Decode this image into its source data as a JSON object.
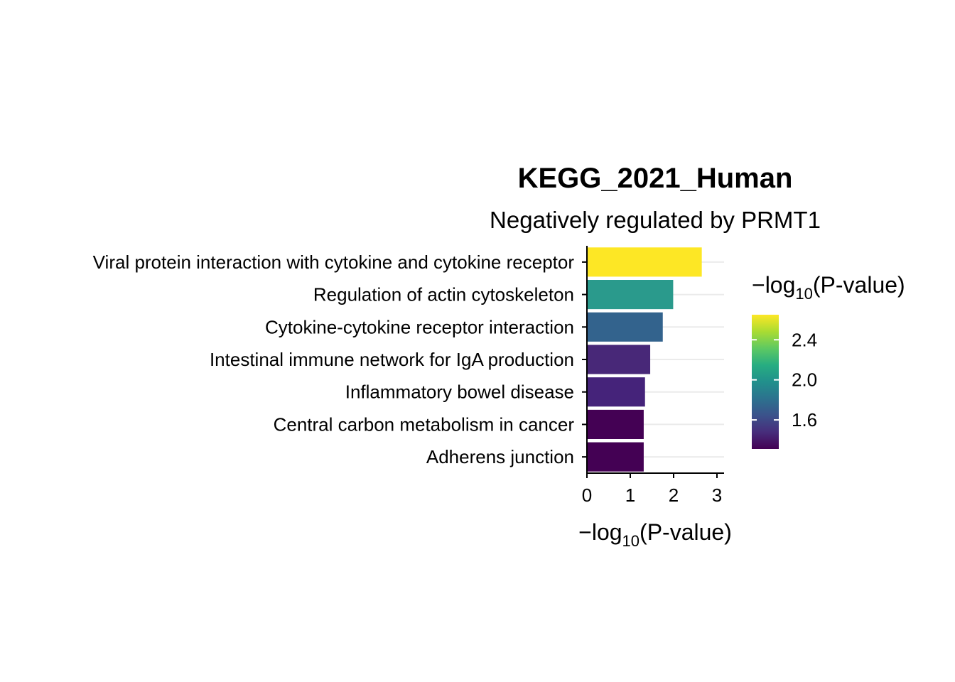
{
  "chart_data": {
    "type": "bar",
    "orientation": "horizontal",
    "title": "KEGG_2021_Human",
    "subtitle": "Negatively regulated by PRMT1",
    "xlabel": "−log10(P-value)",
    "xlabel_parts": {
      "prefix": "−log",
      "sub": "10",
      "suffix": "(P-value)"
    },
    "ylabel": "",
    "categories": [
      "Viral protein interaction with cytokine and cytokine receptor",
      "Regulation of actin cytoskeleton",
      "Cytokine-cytokine receptor interaction",
      "Intestinal immune network for IgA production",
      "Inflammatory bowel disease",
      "Central carbon metabolism in cancer",
      "Adherens junction"
    ],
    "values": [
      2.65,
      1.99,
      1.75,
      1.46,
      1.34,
      1.31,
      1.31
    ],
    "xlim": [
      0,
      3.1
    ],
    "xticks": [
      0,
      1,
      2,
      3
    ],
    "grid": "horizontal-major",
    "legend": {
      "type": "colorbar",
      "title": "−log10(P-value)",
      "title_parts": {
        "prefix": "−log",
        "sub": "10",
        "suffix": "(P-value)"
      },
      "placement": "right",
      "range": [
        1.31,
        2.65
      ],
      "ticks": [
        1.6,
        2.0,
        2.4
      ],
      "tick_labels": [
        "1.6",
        "2.0",
        "2.4"
      ],
      "palette": "viridis"
    },
    "colors": [
      "#FDE725",
      "#2A9A8C",
      "#33638D",
      "#482878",
      "#45237A",
      "#440154",
      "#440154"
    ]
  }
}
